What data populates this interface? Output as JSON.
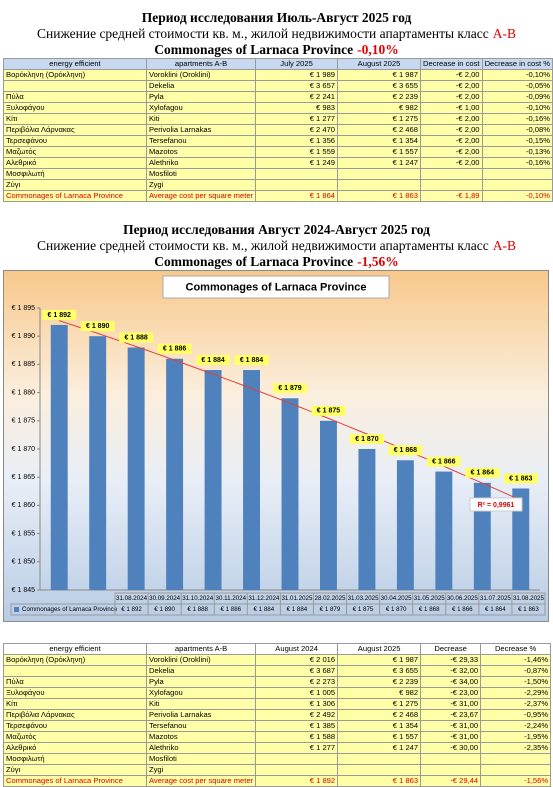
{
  "section1": {
    "title": "Период исследования Июль-Август 2025 год",
    "subtitle": {
      "text": "Снижение средней стоимости кв. м., жилой недвижимости апартаменты класс",
      "highlight": "A-B"
    },
    "region": {
      "text": "Commonages of Larnaca Province",
      "highlight": "-0,10%"
    }
  },
  "table1": {
    "header": [
      "energy efficient",
      "apartments A-B",
      "July 2025",
      "August 2025",
      "Decrease in cost",
      "Decrease in cost %"
    ],
    "rows": [
      [
        "Βορόκληνη (Ορόκληνη)",
        "Voroklini (Oroklini)",
        "€ 1 989",
        "€ 1 987",
        "-€ 2,00",
        "-0,10%"
      ],
      [
        null,
        "Dekelia",
        "€ 3 657",
        "€ 3 655",
        "-€ 2,00",
        "-0,05%"
      ],
      [
        "Πύλα",
        "Pyla",
        "€ 2 241",
        "€ 2 239",
        "-€ 2,00",
        "-0,09%"
      ],
      [
        "Ξυλοφάγου",
        "Xylofagou",
        "€ 983",
        "€ 982",
        "-€ 1,00",
        "-0,10%"
      ],
      [
        "Κίτι",
        "Kiti",
        "€ 1 277",
        "€ 1 275",
        "-€ 2,00",
        "-0,16%"
      ],
      [
        "Περιβόλια Λάρνακας",
        "Perivolia Larnakas",
        "€ 2 470",
        "€ 2 468",
        "-€ 2,00",
        "-0,08%"
      ],
      [
        "Τερσεφάνου",
        "Tersefanou",
        "€ 1 356",
        "€ 1 354",
        "-€ 2,00",
        "-0,15%"
      ],
      [
        "Μαζωτός",
        "Mazotos",
        "€ 1 559",
        "€ 1 557",
        "-€ 2,00",
        "-0,13%"
      ],
      [
        "Αλεθρικό",
        "Alethriko",
        "€ 1 249",
        "€ 1 247",
        "-€ 2,00",
        "-0,16%"
      ],
      [
        "Μοσφιλωτή",
        "Mosfiloti",
        null,
        null,
        null,
        null
      ],
      [
        "Ζύγι",
        "Zygi",
        null,
        null,
        null,
        null
      ],
      [
        "Commonages of Larnaca Province",
        "Average cost per square meter",
        "€ 1 864",
        "€ 1 863",
        "-€ 1,89",
        "-0,10%"
      ]
    ]
  },
  "section2": {
    "title": "Период исследования Август 2024-Август 2025 год",
    "subtitle": {
      "text": "Снижение средней стоимости кв. м., жилой недвижимости апартаменты класс",
      "highlight": "A-B"
    },
    "region": {
      "text": "Commonages of Larnaca Province",
      "highlight": "-1,56%"
    }
  },
  "chart_data": {
    "type": "bar",
    "title": "Commonages of Larnaca Province",
    "categories": [
      "31.08.2024",
      "30.09.2024",
      "31.10.2024",
      "30.11.2024",
      "31.12.2024",
      "31.01.2025",
      "28.02.2025",
      "31.03.2025",
      "30.04.2025",
      "31.05.2025",
      "30.06.2025",
      "31.07.2025",
      "31.08.2025"
    ],
    "series": [
      {
        "name": "Commonages of Larnaca Province",
        "color": "#4f81bd",
        "values": [
          1892,
          1890,
          1888,
          1886,
          1884,
          1884,
          1879,
          1875,
          1870,
          1868,
          1866,
          1864,
          1863
        ],
        "value_labels": [
          "€ 1 892",
          "€ 1 890",
          "€ 1 888",
          "€ 1 886",
          "€ 1 884",
          "€ 1 884",
          "€ 1 879",
          "€ 1 875",
          "€ 1 870",
          "€ 1 868",
          "€ 1 866",
          "€ 1 864",
          "€ 1 863"
        ]
      }
    ],
    "ylim": [
      1845,
      1895
    ],
    "yticks": [
      {
        "value": 1845,
        "label": "€ 1 845"
      },
      {
        "value": 1850,
        "label": "€ 1 850"
      },
      {
        "value": 1855,
        "label": "€ 1 855"
      },
      {
        "value": 1860,
        "label": "€ 1 860"
      },
      {
        "value": 1865,
        "label": "€ 1 865"
      },
      {
        "value": 1870,
        "label": "€ 1 870"
      },
      {
        "value": 1875,
        "label": "€ 1 875"
      },
      {
        "value": 1880,
        "label": "€ 1 880"
      },
      {
        "value": 1885,
        "label": "€ 1 885"
      },
      {
        "value": 1890,
        "label": "€ 1 890"
      },
      {
        "value": 1895,
        "label": "€ 1 895"
      }
    ],
    "trendline": "polynomial",
    "trendline_color": "#e0403a",
    "annotation": "R² = 0,9961",
    "grid": false
  },
  "table2": {
    "header": [
      "energy efficient",
      "apartments A-B",
      "August 2024",
      "August 2025",
      "Decrease",
      "Decrease %"
    ],
    "rows": [
      [
        "Βορόκληνη (Ορόκληνη)",
        "Voroklini (Oroklini)",
        "€ 2 016",
        "€ 1 987",
        "-€ 29,33",
        "-1,46%"
      ],
      [
        null,
        "Dekelia",
        "€ 3 687",
        "€ 3 655",
        "-€ 32,00",
        "-0,87%"
      ],
      [
        "Πύλα",
        "Pyla",
        "€ 2 273",
        "€ 2 239",
        "-€ 34,00",
        "-1,50%"
      ],
      [
        "Ξυλοφάγου",
        "Xylofagou",
        "€ 1 005",
        "€ 982",
        "-€ 23,00",
        "-2,29%"
      ],
      [
        "Κίτι",
        "Kiti",
        "€ 1 306",
        "€ 1 275",
        "-€ 31,00",
        "-2,37%"
      ],
      [
        "Περιβόλια Λάρνακας",
        "Perivolia Larnakas",
        "€ 2 492",
        "€ 2 468",
        "-€ 23,67",
        "-0,95%"
      ],
      [
        "Τερσεφάνου",
        "Tersefanou",
        "€ 1 385",
        "€ 1 354",
        "-€ 31,00",
        "-2,24%"
      ],
      [
        "Μαζωτός",
        "Mazotos",
        "€ 1 588",
        "€ 1 557",
        "-€ 31,00",
        "-1,95%"
      ],
      [
        "Αλεθρικό",
        "Alethriko",
        "€ 1 277",
        "€ 1 247",
        "-€ 30,00",
        "-2,35%"
      ],
      [
        "Μοσφιλωτή",
        "Mosfiloti",
        null,
        null,
        null,
        null
      ],
      [
        "Ζύγι",
        "Zygi",
        null,
        null,
        null,
        null
      ],
      [
        "Commonages of Larnaca Province",
        "Average cost per square meter",
        "€ 1 892",
        "€ 1 863",
        "-€ 29,44",
        "-1,56%"
      ]
    ]
  }
}
